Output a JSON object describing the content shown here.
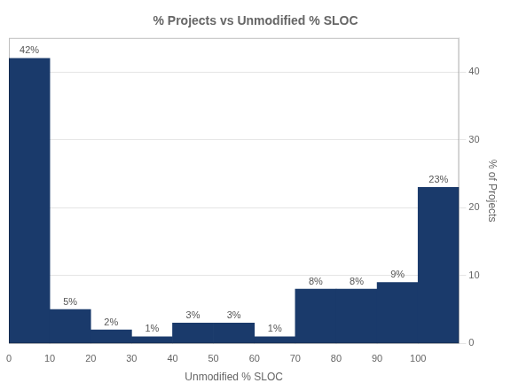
{
  "chart_data": {
    "type": "histogram",
    "title": "% Projects vs Unmodified % SLOC",
    "xlabel": "Unmodified % SLOC",
    "ylabel": "% of Projects",
    "bins": [
      0,
      10,
      20,
      30,
      40,
      50,
      60,
      70,
      80,
      90,
      100,
      110
    ],
    "values": [
      42,
      5,
      2,
      1,
      3,
      3,
      1,
      8,
      8,
      9,
      23
    ],
    "value_labels": [
      "42%",
      "5%",
      "2%",
      "1%",
      "3%",
      "3%",
      "1%",
      "8%",
      "8%",
      "9%",
      "23%"
    ],
    "data_labels": true,
    "color": "#1a3a6b",
    "xlim": [
      0,
      110
    ],
    "xticks": [
      0,
      10,
      20,
      30,
      40,
      50,
      60,
      70,
      80,
      90,
      100
    ],
    "ylim": [
      0,
      45
    ],
    "yticks": [
      0,
      10,
      20,
      30,
      40
    ],
    "grid": true
  }
}
